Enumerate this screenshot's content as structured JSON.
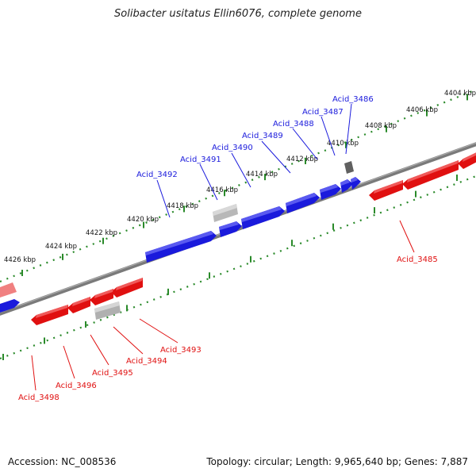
{
  "title": "Solibacter usitatus Ellin6076, complete genome",
  "accession": "Accession: NC_008536",
  "stats": "Topology: circular; Length: 9,965,640 bp; Genes: 7,887",
  "colors": {
    "forward": "#1a1adc",
    "reverse": "#e01010",
    "backbone": "#808080",
    "tick": "#2a8a2a",
    "rna": "#b0b0b0"
  },
  "scale_ticks": [
    "4404 kbp",
    "4406 kbp",
    "4408 kbp",
    "4410 kbp",
    "4412 kbp",
    "4414 kbp",
    "4416 kbp",
    "4418 kbp",
    "4420 kbp",
    "4422 kbp",
    "4424 kbp",
    "4426 kbp"
  ],
  "forward_genes": [
    "Acid_3486",
    "Acid_3487",
    "Acid_3488",
    "Acid_3489",
    "Acid_3490",
    "Acid_3491",
    "Acid_3492"
  ],
  "reverse_genes": [
    "Acid_3485",
    "Acid_3493",
    "Acid_3494",
    "Acid_3495",
    "Acid_3496",
    "Acid_3498"
  ]
}
